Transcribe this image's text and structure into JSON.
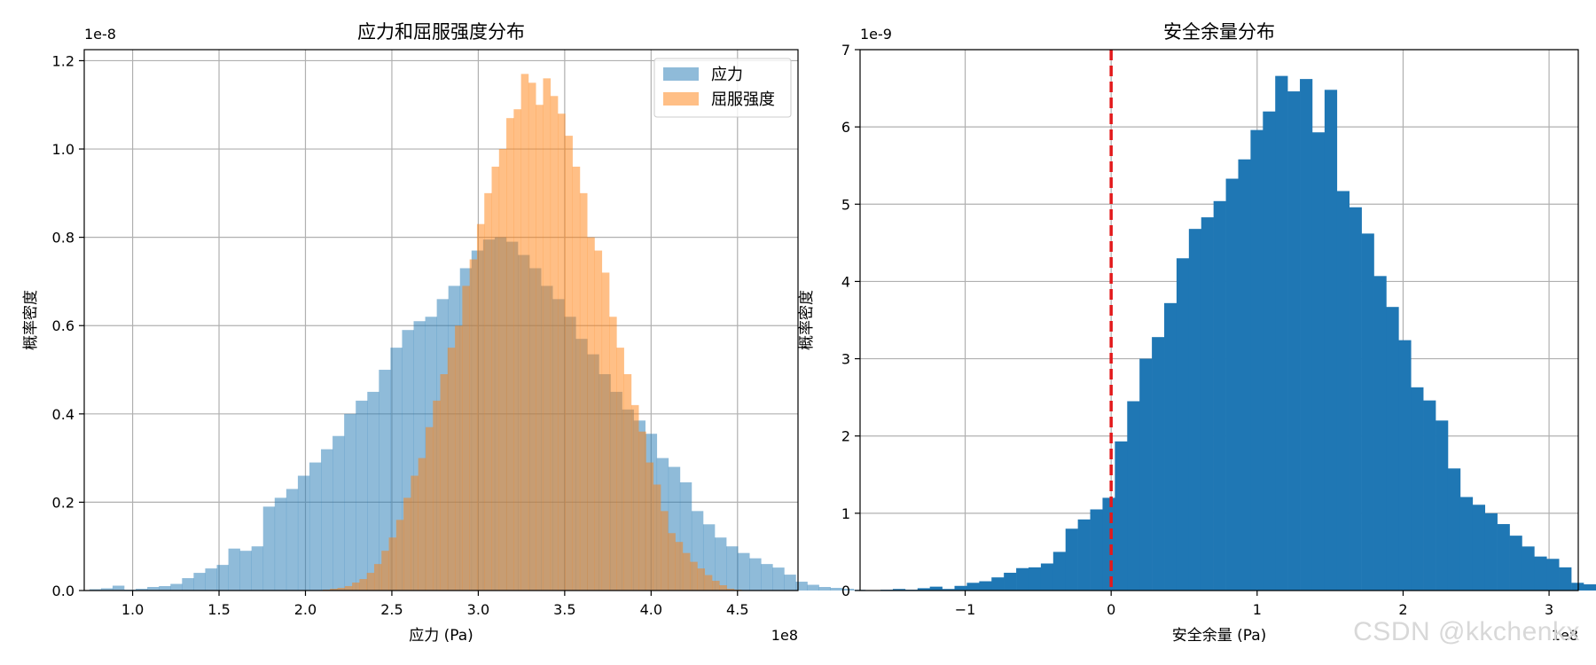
{
  "watermark": "CSDN @kkchenkx",
  "chart_data": [
    {
      "type": "histogram",
      "title": "应力和屈服强度分布",
      "xlabel": "应力 (Pa)",
      "ylabel": "概率密度",
      "x_offset_label": "1e8",
      "y_offset_label": "1e-8",
      "xlim": [
        0.72,
        4.85
      ],
      "ylim": [
        0,
        1.225
      ],
      "xticks": [
        1.0,
        1.5,
        2.0,
        2.5,
        3.0,
        3.5,
        4.0,
        4.5
      ],
      "xtick_labels": [
        "1.0",
        "1.5",
        "2.0",
        "2.5",
        "3.0",
        "3.5",
        "4.0",
        "4.5"
      ],
      "yticks": [
        0,
        0.2,
        0.4,
        0.6,
        0.8,
        1.0,
        1.2
      ],
      "ytick_labels": [
        "0.0",
        "0.2",
        "0.4",
        "0.6",
        "0.8",
        "1.0",
        "1.2"
      ],
      "grid": true,
      "legend": "top-right",
      "series": [
        {
          "name": "应力",
          "color": "#1f77b4",
          "alpha": 0.5,
          "bin_start": 0.75,
          "bin_width": 0.067,
          "values": [
            0.003,
            0.005,
            0.011,
            0.002,
            0.004,
            0.008,
            0.01,
            0.015,
            0.028,
            0.04,
            0.05,
            0.058,
            0.095,
            0.09,
            0.1,
            0.19,
            0.21,
            0.23,
            0.26,
            0.29,
            0.32,
            0.35,
            0.4,
            0.43,
            0.45,
            0.5,
            0.55,
            0.59,
            0.61,
            0.62,
            0.66,
            0.69,
            0.73,
            0.77,
            0.795,
            0.8,
            0.79,
            0.76,
            0.73,
            0.69,
            0.66,
            0.62,
            0.57,
            0.535,
            0.49,
            0.45,
            0.41,
            0.385,
            0.355,
            0.3,
            0.28,
            0.245,
            0.18,
            0.15,
            0.12,
            0.1,
            0.085,
            0.073,
            0.06,
            0.052,
            0.036,
            0.02,
            0.013,
            0.008,
            0.006,
            0.004,
            0.002
          ]
        },
        {
          "name": "屈服强度",
          "color": "#ff7f0e",
          "alpha": 0.5,
          "bin_start": 2.1,
          "bin_width": 0.0425,
          "values": [
            0.002,
            0.004,
            0.006,
            0.01,
            0.018,
            0.026,
            0.04,
            0.06,
            0.09,
            0.12,
            0.16,
            0.21,
            0.26,
            0.3,
            0.37,
            0.43,
            0.49,
            0.55,
            0.6,
            0.69,
            0.75,
            0.83,
            0.9,
            0.96,
            1.0,
            1.07,
            1.09,
            1.17,
            1.15,
            1.1,
            1.16,
            1.12,
            1.08,
            1.03,
            0.96,
            0.9,
            0.8,
            0.77,
            0.72,
            0.62,
            0.55,
            0.49,
            0.42,
            0.36,
            0.29,
            0.24,
            0.18,
            0.13,
            0.11,
            0.085,
            0.065,
            0.05,
            0.035,
            0.022,
            0.012,
            0.004,
            0.002
          ]
        }
      ]
    },
    {
      "type": "histogram",
      "title": "安全余量分布",
      "xlabel": "安全余量 (Pa)",
      "ylabel": "概率密度",
      "x_offset_label": "1e8",
      "y_offset_label": "1e-9",
      "xlim": [
        -1.72,
        3.2
      ],
      "ylim": [
        0,
        7.0
      ],
      "xticks": [
        -1,
        0,
        1,
        2,
        3
      ],
      "xtick_labels": [
        "−1",
        "0",
        "1",
        "2",
        "3"
      ],
      "yticks": [
        0,
        1,
        2,
        3,
        4,
        5,
        6,
        7
      ],
      "ytick_labels": [
        "0",
        "1",
        "2",
        "3",
        "4",
        "5",
        "6",
        "7"
      ],
      "grid": true,
      "reference_line": {
        "x": 0,
        "color": "#e31a1c",
        "style": "dashed"
      },
      "series": [
        {
          "color": "#1f77b4",
          "alpha": 1.0,
          "bin_start": -1.58,
          "bin_width": 0.0845,
          "values": [
            0.01,
            0.02,
            0.01,
            0.03,
            0.05,
            0.02,
            0.06,
            0.1,
            0.12,
            0.17,
            0.23,
            0.29,
            0.3,
            0.35,
            0.5,
            0.8,
            0.92,
            1.05,
            1.2,
            1.93,
            2.45,
            3.0,
            3.28,
            3.72,
            4.3,
            4.68,
            4.83,
            5.04,
            5.33,
            5.58,
            5.96,
            6.2,
            6.66,
            6.46,
            6.62,
            5.93,
            6.48,
            5.17,
            4.96,
            4.62,
            4.07,
            3.67,
            3.24,
            2.63,
            2.46,
            2.2,
            1.58,
            1.21,
            1.11,
            1.0,
            0.86,
            0.71,
            0.57,
            0.44,
            0.41,
            0.3,
            0.1,
            0.08,
            0.04,
            0.05,
            0.04
          ]
        }
      ]
    }
  ]
}
